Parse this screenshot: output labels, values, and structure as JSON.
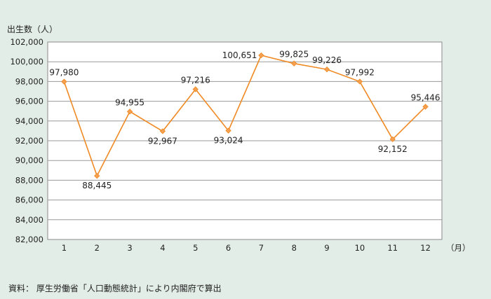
{
  "source_note": "資料： 厚生労働省「人口動態統計」により内閣府で算出",
  "chart_data": {
    "type": "line",
    "ylabel": "出生数（人）",
    "xlabel": "（月）",
    "categories": [
      "1",
      "2",
      "3",
      "4",
      "5",
      "6",
      "7",
      "8",
      "9",
      "10",
      "11",
      "12"
    ],
    "values": [
      97980,
      88445,
      94955,
      92967,
      97216,
      93024,
      100651,
      99825,
      99226,
      97992,
      92152,
      95446
    ],
    "value_labels": [
      "97,980",
      "88,445",
      "94,955",
      "92,967",
      "97,216",
      "93,024",
      "100,651",
      "99,825",
      "99,226",
      "97,992",
      "92,152",
      "95,446"
    ],
    "ylim": [
      82000,
      102000
    ],
    "yticks": [
      82000,
      84000,
      86000,
      88000,
      90000,
      92000,
      94000,
      96000,
      98000,
      100000,
      102000
    ],
    "ytick_labels": [
      "82,000",
      "84,000",
      "86,000",
      "88,000",
      "90,000",
      "92,000",
      "94,000",
      "96,000",
      "98,000",
      "100,000",
      "102,000"
    ],
    "grid": true,
    "line_color": "#f08a24",
    "marker_color": "#f5a050",
    "plot_background": "#ffffff",
    "page_background": "#e3ede8"
  }
}
